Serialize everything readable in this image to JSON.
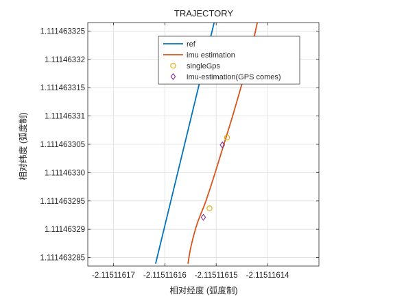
{
  "chart_data": {
    "type": "line",
    "title": "TRAJECTORY",
    "xlabel": "相对经度 (弧度制)",
    "ylabel": "相对纬度 (弧度制)",
    "xlim": [
      -2.115116175,
      -2.11511613
    ],
    "ylim": [
      1.1114632835,
      1.1114633265
    ],
    "x_ticks": [
      -2.11511617,
      -2.11511616,
      -2.11511615,
      -2.11511614
    ],
    "x_tick_labels": [
      "-2.11511617",
      "-2.11511616",
      "-2.11511615",
      "-2.11511614"
    ],
    "y_ticks": [
      1.111463285,
      1.11146329,
      1.111463295,
      1.1114633,
      1.111463305,
      1.11146331,
      1.111463315,
      1.11146332,
      1.111463325
    ],
    "y_tick_labels": [
      "1.111463285",
      "1.11146329",
      "1.111463295",
      "1.11146330",
      "1.111463305",
      "1.11146331",
      "1.111463315",
      "1.11146332",
      "1.111463325"
    ],
    "grid": true,
    "legend_position": "top-right",
    "colors": {
      "ref": "#0072bd",
      "imu": "#d95319",
      "gps": "#edb120",
      "imu_gps": "#7e2f8e"
    },
    "series": [
      {
        "name": "ref",
        "style": "line",
        "x": [
          -2.1151161618,
          -2.1151161504
        ],
        "y": [
          1.1114632839,
          1.1114633265
        ]
      },
      {
        "name": "imu estimation",
        "style": "line",
        "x": [
          -2.1151161555,
          -2.1151161549,
          -2.1151161537,
          -2.115116152,
          -2.1151161502,
          -2.1151161485,
          -2.1151161468,
          -2.1151161452,
          -2.1151161436,
          -2.115116142
        ],
        "y": [
          1.1114632839,
          1.111463287,
          1.111463291,
          1.111463295,
          1.1114633,
          1.111463305,
          1.11146331,
          1.111463315,
          1.11146332,
          1.1114633265
        ]
      },
      {
        "name": "singleGps",
        "style": "marker-circle",
        "x": [
          -2.1151161513,
          -2.1151161479
        ],
        "y": [
          1.1114632937,
          1.1114633062
        ]
      },
      {
        "name": "imu-estimation(GPS comes)",
        "style": "marker-diamond",
        "x": [
          -2.1151161525,
          -2.1151161488
        ],
        "y": [
          1.1114632921,
          1.1114633049
        ]
      }
    ]
  }
}
